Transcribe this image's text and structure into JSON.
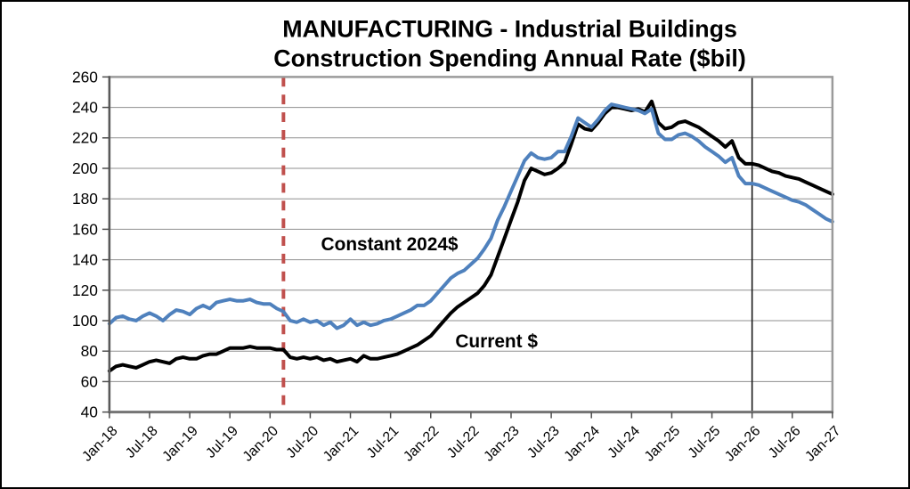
{
  "chart_data": {
    "type": "line",
    "title_line1": "MANUFACTURING - Industrial Buildings",
    "title_line2": "Construction Spending Annual Rate ($bil)",
    "frequency": "monthly",
    "x_start": "Jan-18",
    "x_end": "Jan-27",
    "x_tick_labels": [
      "Jan-18",
      "Jul-18",
      "Jan-19",
      "Jul-19",
      "Jan-20",
      "Jul-20",
      "Jan-21",
      "Jul-21",
      "Jan-22",
      "Jul-22",
      "Jan-23",
      "Jul-23",
      "Jan-24",
      "Jul-24",
      "Jan-25",
      "Jul-25",
      "Jan-26",
      "Jul-26",
      "Jan-27"
    ],
    "y_ticks": [
      40,
      60,
      80,
      100,
      120,
      140,
      160,
      180,
      200,
      220,
      240,
      260
    ],
    "ylim": [
      40,
      260
    ],
    "grid": "horizontal",
    "legend_position": "in-plot-labels",
    "series": [
      {
        "name": "Current $",
        "color": "#000000",
        "values": [
          67,
          70,
          71,
          70,
          69,
          71,
          73,
          74,
          73,
          72,
          75,
          76,
          75,
          75,
          77,
          78,
          78,
          80,
          82,
          82,
          82,
          83,
          82,
          82,
          82,
          81,
          81,
          76,
          75,
          76,
          75,
          76,
          74,
          75,
          73,
          74,
          75,
          73,
          77,
          75,
          75,
          76,
          77,
          78,
          80,
          82,
          84,
          87,
          90,
          95,
          100,
          105,
          109,
          112,
          115,
          118,
          123,
          130,
          142,
          154,
          166,
          178,
          192,
          200,
          198,
          196,
          197,
          200,
          204,
          216,
          229,
          226,
          225,
          230,
          236,
          240,
          240,
          239,
          238,
          239,
          237,
          244,
          230,
          226,
          227,
          230,
          231,
          229,
          227,
          224,
          221,
          218,
          214,
          218,
          207,
          203,
          203,
          202,
          200,
          198,
          197,
          195,
          194,
          193,
          191,
          189,
          187,
          185,
          183
        ]
      },
      {
        "name": "Constant 2024$",
        "color": "#4F81BD",
        "values": [
          98,
          102,
          103,
          101,
          100,
          103,
          105,
          103,
          100,
          104,
          107,
          106,
          104,
          108,
          110,
          108,
          112,
          113,
          114,
          113,
          113,
          114,
          112,
          111,
          111,
          108,
          106,
          100,
          99,
          101,
          99,
          100,
          97,
          99,
          95,
          97,
          101,
          97,
          99,
          97,
          98,
          100,
          101,
          103,
          105,
          107,
          110,
          110,
          113,
          118,
          123,
          128,
          131,
          133,
          137,
          141,
          147,
          154,
          166,
          175,
          185,
          195,
          205,
          210,
          207,
          206,
          207,
          211,
          211,
          221,
          233,
          230,
          227,
          232,
          238,
          242,
          241,
          240,
          239,
          238,
          236,
          239,
          223,
          219,
          219,
          222,
          223,
          221,
          218,
          214,
          211,
          208,
          204,
          207,
          195,
          190,
          190,
          189,
          187,
          185,
          183,
          181,
          179,
          178,
          176,
          173,
          170,
          167,
          165
        ]
      }
    ],
    "vertical_lines": [
      {
        "at": "Mar-20",
        "style": "dashed",
        "color": "#C0504D"
      },
      {
        "at": "Jan-26",
        "style": "solid",
        "color": "#1a1a1a"
      }
    ]
  }
}
